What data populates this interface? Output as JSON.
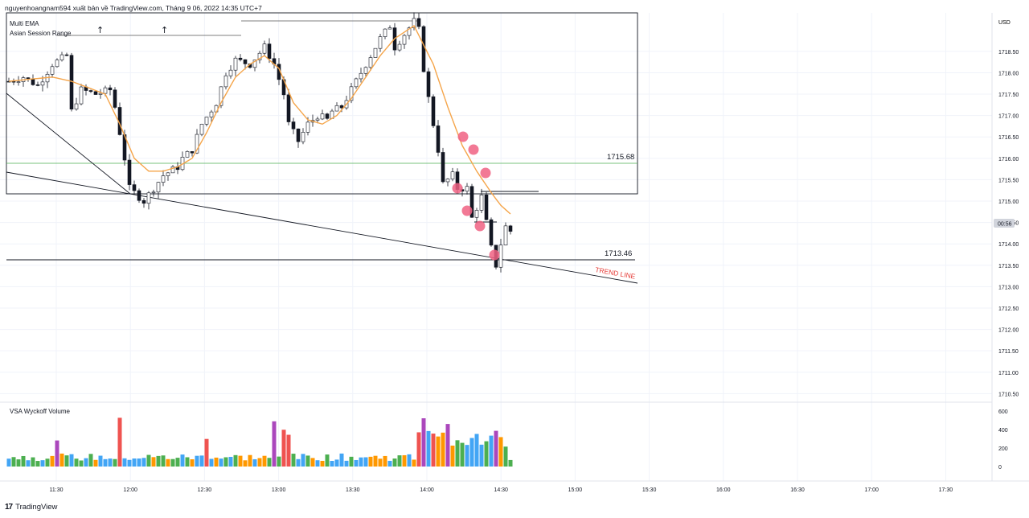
{
  "header": {
    "attribution": "nguyenhoangnam594 xuất bản về TradingView.com, Tháng 9 06, 2022 14:35 UTC+7"
  },
  "indicators": {
    "ema": "Multi EMA",
    "asian_range": "Asian Session Range",
    "volume_pane": "VSA Wyckoff Volume"
  },
  "footer": {
    "brand": "TradingView"
  },
  "colors": {
    "ema": "#f5a54a",
    "candle": "#131722",
    "level_green": "#4caf50",
    "marker": "#f06283",
    "trend_label": "#e53935",
    "vol_blue": "#42a5f5",
    "vol_green": "#4caf50",
    "vol_orange": "#ff9800",
    "vol_red": "#ef5350",
    "vol_magenta": "#ab47bc"
  },
  "chart_data": [
    {
      "type": "candlestick",
      "title": "",
      "currency": "USD",
      "x_ticks": [
        "11:30",
        "12:00",
        "12:30",
        "13:00",
        "13:30",
        "14:00",
        "14:30",
        "15:00",
        "15:30",
        "16:00",
        "16:30",
        "17:00",
        "17:30"
      ],
      "y_ticks": [
        "1718.50",
        "1718.00",
        "1717.50",
        "1717.00",
        "1716.50",
        "1716.00",
        "1715.50",
        "1715.00",
        "1714.50",
        "1714.00",
        "1713.50",
        "1713.00",
        "1712.50",
        "1712.00",
        "1711.50",
        "1711.00",
        "1710.50"
      ],
      "ylim": [
        1710.3,
        1719.4
      ],
      "current_price_badge": "00:56",
      "levels": [
        {
          "label": "1715.68",
          "value": 1715.68,
          "color": "green"
        },
        {
          "label": "1713.46",
          "value": 1713.46,
          "color": "black"
        }
      ],
      "annotations": [
        {
          "text": "TREND LINE"
        }
      ],
      "price_path": [
        [
          0,
          1717.8
        ],
        [
          3,
          1717.9
        ],
        [
          6,
          1717.7
        ],
        [
          9,
          1718.2
        ],
        [
          12,
          1718.4
        ],
        [
          13,
          1717.1
        ],
        [
          15,
          1717.6
        ],
        [
          18,
          1717.5
        ],
        [
          21,
          1717.6
        ],
        [
          22,
          1717.2
        ],
        [
          24,
          1716.0
        ],
        [
          25,
          1715.3
        ],
        [
          27,
          1715.1
        ],
        [
          28,
          1715.0
        ],
        [
          30,
          1715.3
        ],
        [
          32,
          1715.6
        ],
        [
          35,
          1715.8
        ],
        [
          36,
          1716.0
        ],
        [
          38,
          1716.2
        ],
        [
          40,
          1716.8
        ],
        [
          43,
          1717.3
        ],
        [
          45,
          1718.0
        ],
        [
          47,
          1718.3
        ],
        [
          50,
          1718.2
        ],
        [
          53,
          1718.6
        ],
        [
          55,
          1718.2
        ],
        [
          57,
          1717.5
        ],
        [
          58,
          1716.8
        ],
        [
          60,
          1716.4
        ],
        [
          62,
          1716.8
        ],
        [
          64,
          1717.0
        ],
        [
          66,
          1716.9
        ],
        [
          67,
          1717.1
        ],
        [
          69,
          1717.2
        ],
        [
          71,
          1717.6
        ],
        [
          73,
          1718.0
        ],
        [
          75,
          1718.4
        ],
        [
          77,
          1718.8
        ],
        [
          79,
          1719.1
        ],
        [
          80,
          1718.6
        ],
        [
          82,
          1718.9
        ],
        [
          84,
          1719.2
        ],
        [
          85,
          1719.0
        ],
        [
          86,
          1718.1
        ],
        [
          87,
          1717.4
        ],
        [
          88,
          1716.8
        ],
        [
          89,
          1716.2
        ],
        [
          90,
          1715.4
        ],
        [
          92,
          1715.6
        ],
        [
          93,
          1715.3
        ],
        [
          95,
          1715.3
        ],
        [
          96,
          1714.6
        ],
        [
          98,
          1715.1
        ],
        [
          99,
          1714.5
        ],
        [
          100,
          1713.9
        ],
        [
          101,
          1713.5
        ],
        [
          102,
          1714.0
        ],
        [
          103,
          1714.4
        ],
        [
          104,
          1714.3
        ]
      ],
      "ema_path": [
        [
          0,
          1717.8
        ],
        [
          9,
          1717.9
        ],
        [
          13,
          1717.8
        ],
        [
          20,
          1717.5
        ],
        [
          23,
          1716.8
        ],
        [
          26,
          1716.0
        ],
        [
          29,
          1715.7
        ],
        [
          32,
          1715.7
        ],
        [
          35,
          1715.8
        ],
        [
          38,
          1716.0
        ],
        [
          41,
          1716.6
        ],
        [
          44,
          1717.3
        ],
        [
          47,
          1717.9
        ],
        [
          50,
          1718.2
        ],
        [
          53,
          1718.4
        ],
        [
          56,
          1718.1
        ],
        [
          59,
          1717.3
        ],
        [
          62,
          1716.9
        ],
        [
          65,
          1716.8
        ],
        [
          68,
          1717.0
        ],
        [
          71,
          1717.4
        ],
        [
          74,
          1717.9
        ],
        [
          77,
          1718.4
        ],
        [
          80,
          1718.8
        ],
        [
          84,
          1719.1
        ],
        [
          88,
          1718.2
        ],
        [
          91,
          1717.2
        ],
        [
          94,
          1716.3
        ],
        [
          97,
          1715.7
        ],
        [
          100,
          1715.2
        ],
        [
          102,
          1714.9
        ],
        [
          104,
          1714.7
        ]
      ],
      "volume_ticks": [
        "600",
        "400",
        "200",
        "0"
      ],
      "volume_ylim": [
        0,
        650
      ]
    }
  ]
}
